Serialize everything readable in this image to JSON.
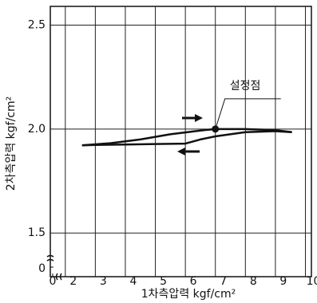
{
  "chart_data": {
    "type": "line",
    "x_label": "1차측압력 kgf/cm²",
    "y_label": "2차측압력 kgf/cm²",
    "xlim": [
      1.5,
      10.2
    ],
    "ylim": [
      1.29,
      2.59
    ],
    "xticks": [
      0,
      2,
      3,
      4,
      5,
      6,
      7,
      8,
      9,
      10
    ],
    "yticks": [
      0,
      1.5,
      {
        "value": 2,
        "label": "2.0"
      },
      2.5
    ],
    "axis_break": true,
    "grid": true,
    "color": "#111111",
    "series": [
      {
        "x": [
          2.56,
          3.5,
          4.5,
          5.5,
          6.5,
          7,
          8,
          9,
          9.55
        ],
        "values": [
          1.922,
          1.932,
          1.95,
          1.975,
          1.993,
          2.0,
          2.0,
          1.995,
          1.985
        ]
      },
      {
        "x": [
          9.55,
          9,
          8,
          7,
          6.5,
          6,
          5,
          4,
          3,
          2.56
        ],
        "values": [
          1.985,
          1.99,
          1.985,
          1.965,
          1.95,
          1.93,
          1.928,
          1.926,
          1.924,
          1.922
        ]
      }
    ],
    "annotations": [
      {
        "text": "설정점",
        "x": 7,
        "y": 2.0
      }
    ]
  }
}
